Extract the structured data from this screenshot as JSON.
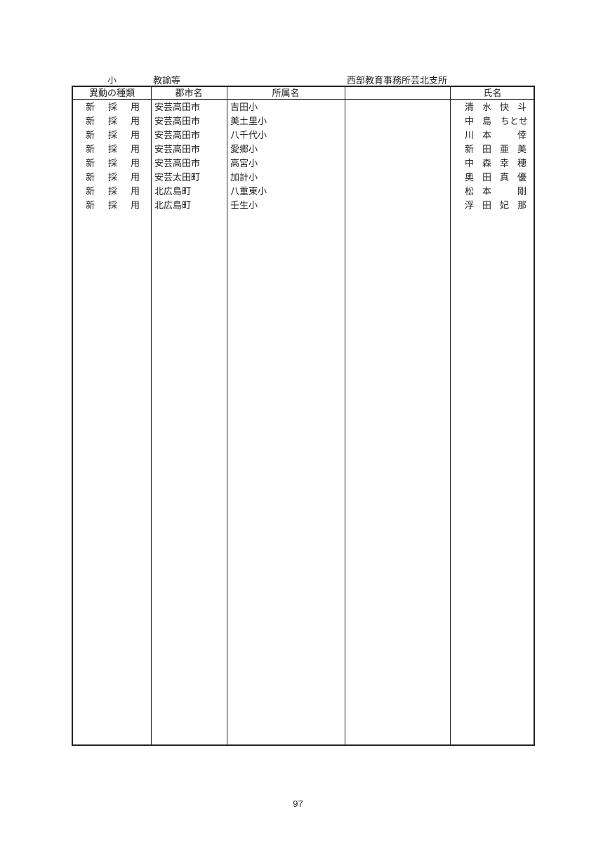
{
  "header": {
    "level": "小",
    "position": "教諭等",
    "office": "西部教育事務所芸北支所"
  },
  "columns": [
    "異動の種類",
    "郡市名",
    "所属名",
    "",
    "氏名"
  ],
  "rows": [
    {
      "kind": [
        "新",
        "採",
        "用"
      ],
      "city": "安芸高田市",
      "school": "吉田小",
      "name": [
        "清",
        "水",
        "快",
        "斗"
      ]
    },
    {
      "kind": [
        "新",
        "採",
        "用"
      ],
      "city": "安芸高田市",
      "school": "美土里小",
      "name": [
        "中",
        "島",
        "ちとせ"
      ]
    },
    {
      "kind": [
        "新",
        "採",
        "用"
      ],
      "city": "安芸高田市",
      "school": "八千代小",
      "name": [
        "川",
        "本",
        "",
        "倖"
      ]
    },
    {
      "kind": [
        "新",
        "採",
        "用"
      ],
      "city": "安芸高田市",
      "school": "愛郷小",
      "name": [
        "新",
        "田",
        "亜",
        "美"
      ]
    },
    {
      "kind": [
        "新",
        "採",
        "用"
      ],
      "city": "安芸高田市",
      "school": "高宮小",
      "name": [
        "中",
        "森",
        "幸",
        "穂"
      ]
    },
    {
      "kind": [
        "新",
        "採",
        "用"
      ],
      "city": "安芸太田町",
      "school": "加計小",
      "name": [
        "奥",
        "田",
        "真",
        "優"
      ]
    },
    {
      "kind": [
        "新",
        "採",
        "用"
      ],
      "city": "北広島町",
      "school": "八重東小",
      "name": [
        "松",
        "本",
        "",
        "剛"
      ]
    },
    {
      "kind": [
        "新",
        "採",
        "用"
      ],
      "city": "北広島町",
      "school": "壬生小",
      "name": [
        "浮",
        "田",
        "妃",
        "那"
      ]
    }
  ],
  "page_number": "97"
}
